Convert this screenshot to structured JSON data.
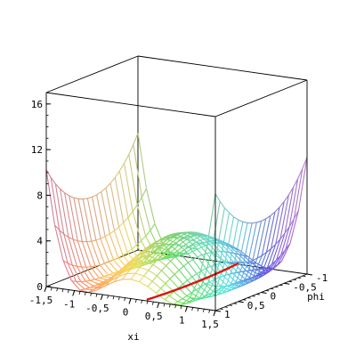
{
  "chart_data": {
    "type": "surface3d",
    "title": "",
    "function": "z = 4*(xi^2 + phi^2 - 1)^2 along the symmetric ridge profile (double-well surface)",
    "xlabel": "xi",
    "ylabel": "phi",
    "zlabel": "",
    "xlim": [
      -1.5,
      1.5
    ],
    "ylim": [
      -1,
      1
    ],
    "zlim": [
      0,
      17
    ],
    "x_ticks": [
      "-1,5",
      "-1",
      "-0,5",
      "0",
      "0,5",
      "1",
      "1,5"
    ],
    "x_tick_values": [
      -1.5,
      -1,
      -0.5,
      0,
      0.5,
      1,
      1.5
    ],
    "y_ticks": [
      "-1",
      "-0,5",
      "0",
      "0,5",
      "1"
    ],
    "y_tick_values": [
      -1,
      -0.5,
      0,
      0.5,
      1
    ],
    "z_ticks": [
      "0",
      "4",
      "8",
      "12",
      "16"
    ],
    "z_tick_values": [
      0,
      4,
      8,
      12,
      16
    ],
    "grid_points": 21,
    "colormap": [
      "#f25a8a",
      "#ff9a5c",
      "#ffe45a",
      "#5ee05e",
      "#55e6e6",
      "#5a5ae0",
      "#d05ae0"
    ],
    "minimum_curve_color": "#e01010",
    "box": true
  }
}
